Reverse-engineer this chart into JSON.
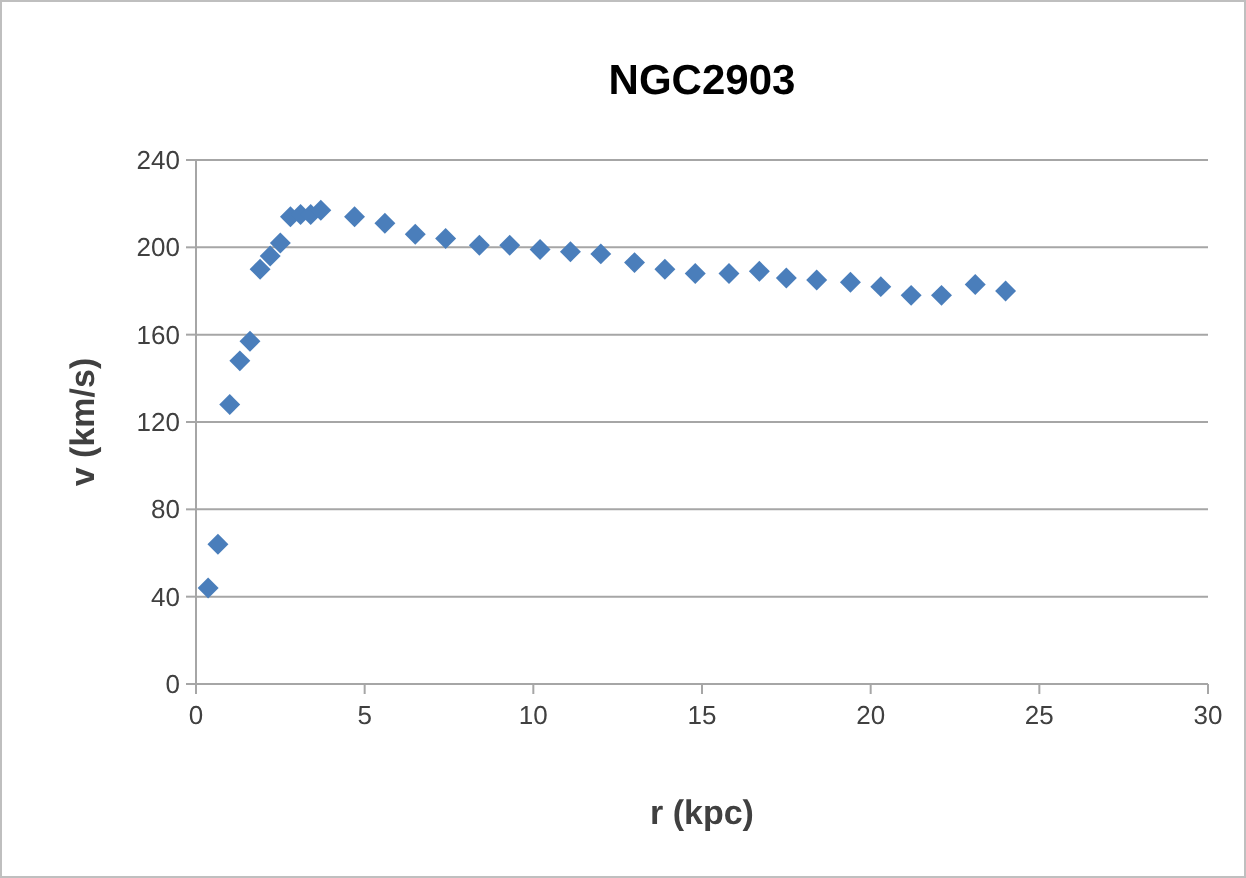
{
  "chart_data": {
    "type": "scatter",
    "title": "NGC2903",
    "xlabel": "r (kpc)",
    "ylabel": "v (km/s)",
    "xlim": [
      0,
      30
    ],
    "xticks": [
      0,
      5,
      10,
      15,
      20,
      25,
      30
    ],
    "ylim": [
      0,
      240
    ],
    "yticks": [
      0,
      40,
      80,
      120,
      160,
      200,
      240
    ],
    "grid": "y",
    "marker": "diamond",
    "series": [
      {
        "color": "#4a7ebb",
        "x": [
          0.36,
          0.65,
          1.0,
          1.3,
          1.6,
          1.9,
          2.2,
          2.5,
          2.8,
          3.1,
          3.4,
          3.7,
          4.7,
          5.6,
          6.5,
          7.4,
          8.4,
          9.3,
          10.2,
          11.1,
          12.0,
          13.0,
          13.9,
          14.8,
          15.8,
          16.7,
          17.5,
          18.4,
          19.4,
          20.3,
          21.2,
          22.1,
          23.1,
          24.0
        ],
        "values": [
          44,
          64,
          128,
          148,
          157,
          190,
          196,
          202,
          214,
          215,
          215,
          217,
          214,
          211,
          206,
          204,
          201,
          201,
          199,
          198,
          197,
          193,
          190,
          188,
          188,
          189,
          186,
          185,
          184,
          182,
          178,
          178,
          183,
          180
        ]
      }
    ]
  }
}
